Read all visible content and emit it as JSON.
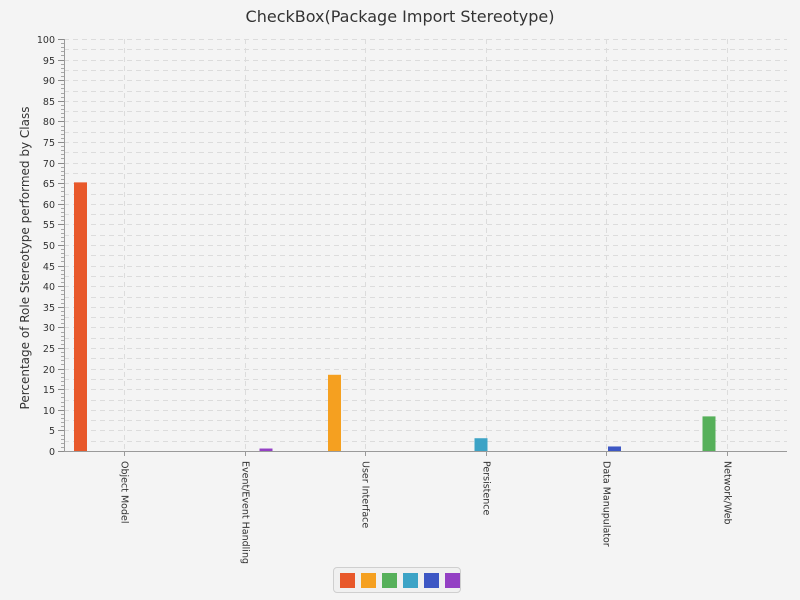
{
  "chart_data": {
    "type": "bar",
    "title": "CheckBox(Package Import Stereotype)",
    "xlabel": "",
    "ylabel": "Percentage of Role Stereotype performed by Class",
    "ylim": [
      0,
      100
    ],
    "y_major_ticks": [
      0,
      5,
      10,
      15,
      20,
      25,
      30,
      35,
      40,
      45,
      50,
      55,
      60,
      65,
      70,
      75,
      80,
      85,
      90,
      95,
      100
    ],
    "categories": [
      "Object Model",
      "Event/Event Handling",
      "User Interface",
      "Persistence",
      "Data Manupulator",
      "Network/Web"
    ],
    "series": [
      {
        "color": "#e8582a",
        "values": [
          65.2,
          0,
          0,
          0,
          0,
          0
        ]
      },
      {
        "color": "#f5a020",
        "values": [
          0,
          0,
          18.5,
          0,
          0,
          0
        ]
      },
      {
        "color": "#56b05a",
        "values": [
          0,
          0,
          0,
          0,
          0,
          8.4
        ]
      },
      {
        "color": "#3ca3c6",
        "values": [
          0,
          0,
          0,
          3.1,
          0,
          0
        ]
      },
      {
        "color": "#3d57c4",
        "values": [
          0,
          0,
          0,
          0,
          1.1,
          0
        ]
      },
      {
        "color": "#9440c4",
        "values": [
          0,
          0.6,
          0,
          0,
          0,
          0
        ]
      }
    ],
    "grid": true,
    "legend_position": "bottom-center"
  }
}
